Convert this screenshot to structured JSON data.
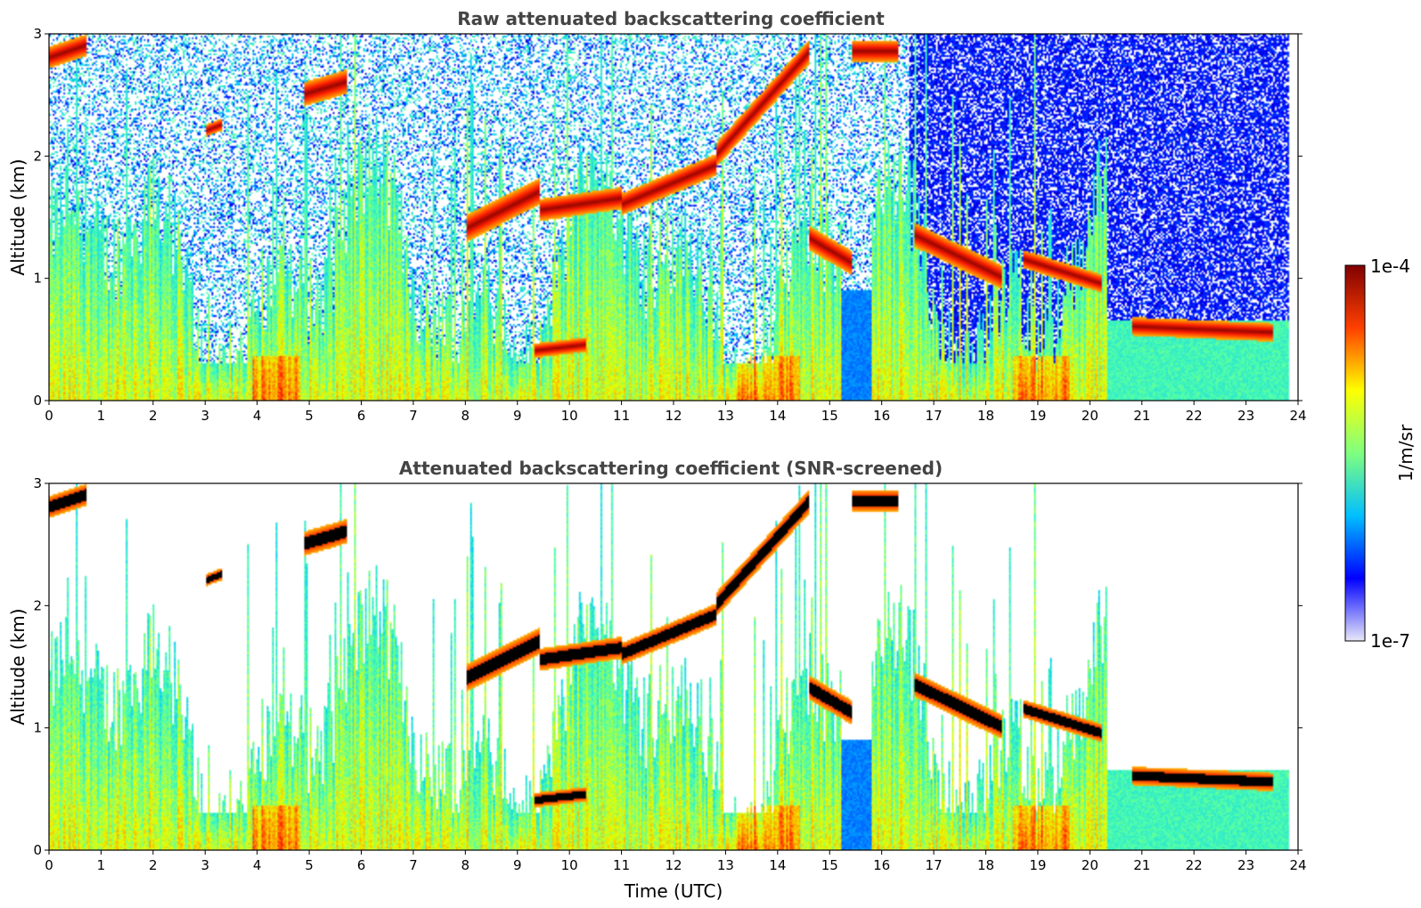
{
  "chart_data": [
    {
      "type": "heatmap",
      "title": "Raw attenuated backscattering coefficient",
      "xlabel": "",
      "ylabel": "Altitude (km)",
      "xlim": [
        0,
        24
      ],
      "ylim": [
        0,
        3
      ],
      "x_ticks": [
        "0",
        "1",
        "2",
        "3",
        "4",
        "5",
        "6",
        "7",
        "8",
        "9",
        "10",
        "11",
        "12",
        "13",
        "14",
        "15",
        "16",
        "17",
        "18",
        "19",
        "20",
        "21",
        "22",
        "23",
        "24"
      ],
      "y_ticks": [
        "0",
        "1",
        "2",
        "3"
      ],
      "data_end_time": 23.8,
      "screened": false,
      "layers": [
        {
          "t0": 8.0,
          "t1": 9.4,
          "alt0": 1.4,
          "alt1": 1.7,
          "thick": 0.22
        },
        {
          "t0": 9.4,
          "t1": 11.0,
          "alt0": 1.55,
          "alt1": 1.65,
          "thick": 0.18
        },
        {
          "t0": 11.0,
          "t1": 12.8,
          "alt0": 1.6,
          "alt1": 1.92,
          "thick": 0.18
        },
        {
          "t0": 12.8,
          "t1": 14.6,
          "alt0": 2.0,
          "alt1": 2.85,
          "thick": 0.2
        },
        {
          "t0": 14.6,
          "t1": 15.4,
          "alt0": 1.32,
          "alt1": 1.12,
          "thick": 0.2
        },
        {
          "t0": 16.6,
          "t1": 18.3,
          "alt0": 1.35,
          "alt1": 1.0,
          "thick": 0.2
        },
        {
          "t0": 18.7,
          "t1": 20.2,
          "alt0": 1.15,
          "alt1": 0.95,
          "thick": 0.15
        },
        {
          "t0": 20.8,
          "t1": 23.5,
          "alt0": 0.6,
          "alt1": 0.55,
          "thick": 0.15
        },
        {
          "t0": 9.3,
          "t1": 10.3,
          "alt0": 0.4,
          "alt1": 0.45,
          "thick": 0.12
        },
        {
          "t0": 4.9,
          "t1": 5.7,
          "alt0": 2.5,
          "alt1": 2.6,
          "thick": 0.2
        },
        {
          "t0": 3.0,
          "t1": 3.3,
          "alt0": 2.2,
          "alt1": 2.25,
          "thick": 0.1
        },
        {
          "t0": 0.0,
          "t1": 0.7,
          "alt0": 2.8,
          "alt1": 2.9,
          "thick": 0.18
        },
        {
          "t0": 15.4,
          "t1": 16.3,
          "alt0": 2.85,
          "alt1": 2.85,
          "thick": 0.18
        }
      ]
    },
    {
      "type": "heatmap",
      "title": "Attenuated backscattering coefficient (SNR-screened)",
      "xlabel": "Time (UTC)",
      "ylabel": "Altitude (km)",
      "xlim": [
        0,
        24
      ],
      "ylim": [
        0,
        3
      ],
      "x_ticks": [
        "0",
        "1",
        "2",
        "3",
        "4",
        "5",
        "6",
        "7",
        "8",
        "9",
        "10",
        "11",
        "12",
        "13",
        "14",
        "15",
        "16",
        "17",
        "18",
        "19",
        "20",
        "21",
        "22",
        "23",
        "24"
      ],
      "y_ticks": [
        "0",
        "1",
        "2",
        "3"
      ],
      "data_end_time": 23.8,
      "screened": true,
      "layers": [
        {
          "t0": 8.0,
          "t1": 9.4,
          "alt0": 1.4,
          "alt1": 1.7,
          "thick": 0.22
        },
        {
          "t0": 9.4,
          "t1": 11.0,
          "alt0": 1.55,
          "alt1": 1.65,
          "thick": 0.18
        },
        {
          "t0": 11.0,
          "t1": 12.8,
          "alt0": 1.6,
          "alt1": 1.92,
          "thick": 0.18
        },
        {
          "t0": 12.8,
          "t1": 14.6,
          "alt0": 2.0,
          "alt1": 2.85,
          "thick": 0.2
        },
        {
          "t0": 14.6,
          "t1": 15.4,
          "alt0": 1.32,
          "alt1": 1.12,
          "thick": 0.2
        },
        {
          "t0": 16.6,
          "t1": 18.3,
          "alt0": 1.35,
          "alt1": 1.0,
          "thick": 0.2
        },
        {
          "t0": 18.7,
          "t1": 20.2,
          "alt0": 1.15,
          "alt1": 0.95,
          "thick": 0.15
        },
        {
          "t0": 20.8,
          "t1": 23.5,
          "alt0": 0.6,
          "alt1": 0.55,
          "thick": 0.15
        },
        {
          "t0": 9.3,
          "t1": 10.3,
          "alt0": 0.4,
          "alt1": 0.45,
          "thick": 0.12
        },
        {
          "t0": 4.9,
          "t1": 5.7,
          "alt0": 2.5,
          "alt1": 2.6,
          "thick": 0.2
        },
        {
          "t0": 3.0,
          "t1": 3.3,
          "alt0": 2.2,
          "alt1": 2.25,
          "thick": 0.1
        },
        {
          "t0": 0.0,
          "t1": 0.7,
          "alt0": 2.8,
          "alt1": 2.9,
          "thick": 0.18
        },
        {
          "t0": 15.4,
          "t1": 16.3,
          "alt0": 2.85,
          "alt1": 2.85,
          "thick": 0.18
        }
      ]
    }
  ],
  "colorbar": {
    "label": "1/m/sr",
    "min_label": "1e-7",
    "max_label": "1e-4",
    "scale": "log",
    "colormap": "jet",
    "colors": [
      "#e8e8f8",
      "#0000ff",
      "#00bfff",
      "#7fff7f",
      "#ffff00",
      "#ff4000",
      "#800000"
    ]
  }
}
